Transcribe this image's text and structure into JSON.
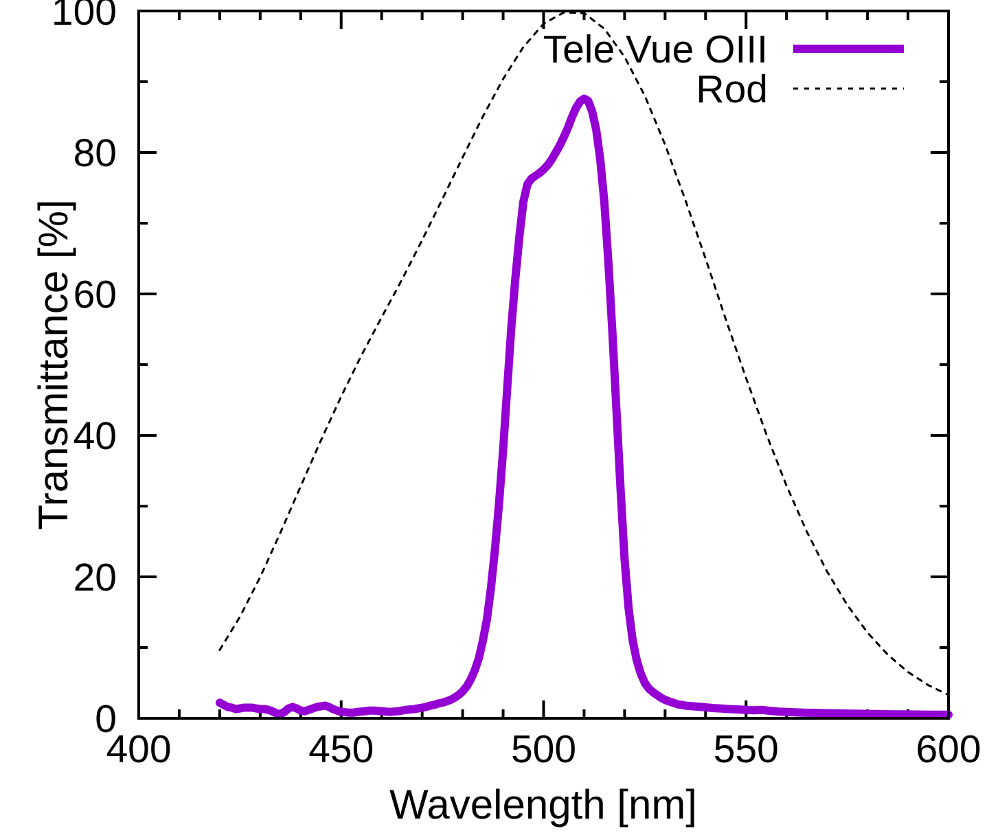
{
  "chart_data": {
    "type": "line",
    "title": "",
    "xlabel": "Wavelength [nm]",
    "ylabel": "Transmittance [%]",
    "xlim": [
      400,
      600
    ],
    "ylim": [
      0,
      100
    ],
    "x_major_ticks": [
      400,
      450,
      500,
      550,
      600
    ],
    "x_minor_step": 10,
    "y_major_ticks": [
      0,
      20,
      40,
      60,
      80,
      100
    ],
    "y_minor_step": 10,
    "grid": false,
    "legend_position": "top-right-inside",
    "axis_color": "#000000",
    "background_color": "#ffffff",
    "series": [
      {
        "name": "Tele Vue OIII",
        "color": "#9400d3",
        "line_width": 12,
        "dash": null,
        "points": [
          [
            420,
            2.2
          ],
          [
            421,
            1.9
          ],
          [
            422,
            1.6
          ],
          [
            423,
            1.5
          ],
          [
            424,
            1.3
          ],
          [
            425,
            1.4
          ],
          [
            426,
            1.5
          ],
          [
            427,
            1.5
          ],
          [
            428,
            1.5
          ],
          [
            429,
            1.4
          ],
          [
            430,
            1.3
          ],
          [
            431,
            1.3
          ],
          [
            432,
            1.2
          ],
          [
            433,
            1.0
          ],
          [
            434,
            0.7
          ],
          [
            435,
            0.6
          ],
          [
            436,
            0.9
          ],
          [
            437,
            1.4
          ],
          [
            438,
            1.6
          ],
          [
            439,
            1.4
          ],
          [
            440,
            1.1
          ],
          [
            441,
            1.0
          ],
          [
            442,
            1.2
          ],
          [
            443,
            1.4
          ],
          [
            444,
            1.6
          ],
          [
            445,
            1.7
          ],
          [
            446,
            1.8
          ],
          [
            447,
            1.6
          ],
          [
            448,
            1.3
          ],
          [
            449,
            1.1
          ],
          [
            450,
            0.9
          ],
          [
            451,
            0.85
          ],
          [
            452,
            0.8
          ],
          [
            453,
            0.8
          ],
          [
            454,
            0.9
          ],
          [
            455,
            0.95
          ],
          [
            456,
            1.0
          ],
          [
            457,
            1.1
          ],
          [
            458,
            1.1
          ],
          [
            459,
            1.05
          ],
          [
            460,
            1.0
          ],
          [
            461,
            0.95
          ],
          [
            462,
            0.9
          ],
          [
            463,
            0.95
          ],
          [
            464,
            1.0
          ],
          [
            465,
            1.1
          ],
          [
            466,
            1.2
          ],
          [
            467,
            1.25
          ],
          [
            468,
            1.3
          ],
          [
            469,
            1.4
          ],
          [
            470,
            1.5
          ],
          [
            471,
            1.6
          ],
          [
            472,
            1.8
          ],
          [
            473,
            1.9
          ],
          [
            474,
            2.1
          ],
          [
            475,
            2.2
          ],
          [
            476,
            2.4
          ],
          [
            477,
            2.6
          ],
          [
            478,
            2.9
          ],
          [
            479,
            3.3
          ],
          [
            480,
            3.8
          ],
          [
            481,
            4.5
          ],
          [
            482,
            5.5
          ],
          [
            483,
            6.8
          ],
          [
            484,
            8.5
          ],
          [
            485,
            11
          ],
          [
            486,
            14
          ],
          [
            487,
            18.5
          ],
          [
            488,
            24
          ],
          [
            489,
            30.5
          ],
          [
            490,
            38
          ],
          [
            491,
            46.5
          ],
          [
            492,
            55
          ],
          [
            493,
            62
          ],
          [
            494,
            68
          ],
          [
            495,
            73
          ],
          [
            496,
            75.5
          ],
          [
            497,
            76.3
          ],
          [
            498,
            76.7
          ],
          [
            499,
            77.1
          ],
          [
            500,
            77.6
          ],
          [
            501,
            78.2
          ],
          [
            502,
            79
          ],
          [
            503,
            80
          ],
          [
            504,
            81
          ],
          [
            505,
            82.2
          ],
          [
            506,
            83.5
          ],
          [
            507,
            85
          ],
          [
            508,
            86.3
          ],
          [
            509,
            87.2
          ],
          [
            510,
            87.6
          ],
          [
            511,
            87.3
          ],
          [
            512,
            85.8
          ],
          [
            513,
            83.2
          ],
          [
            514,
            79
          ],
          [
            515,
            73
          ],
          [
            516,
            64.5
          ],
          [
            517,
            54.5
          ],
          [
            518,
            43.5
          ],
          [
            519,
            32.5
          ],
          [
            520,
            22.5
          ],
          [
            521,
            15.5
          ],
          [
            522,
            11
          ],
          [
            523,
            8.2
          ],
          [
            524,
            6.3
          ],
          [
            525,
            5.0
          ],
          [
            526,
            4.2
          ],
          [
            527,
            3.7
          ],
          [
            528,
            3.3
          ],
          [
            529,
            2.9
          ],
          [
            530,
            2.6
          ],
          [
            531,
            2.4
          ],
          [
            532,
            2.2
          ],
          [
            533,
            2.0
          ],
          [
            534,
            1.9
          ],
          [
            535,
            1.8
          ],
          [
            536,
            1.75
          ],
          [
            537,
            1.7
          ],
          [
            538,
            1.65
          ],
          [
            539,
            1.6
          ],
          [
            540,
            1.55
          ],
          [
            542,
            1.45
          ],
          [
            544,
            1.38
          ],
          [
            546,
            1.3
          ],
          [
            548,
            1.25
          ],
          [
            550,
            1.18
          ],
          [
            552,
            1.15
          ],
          [
            554,
            1.18
          ],
          [
            556,
            1.05
          ],
          [
            558,
            0.95
          ],
          [
            560,
            0.9
          ],
          [
            562,
            0.85
          ],
          [
            564,
            0.8
          ],
          [
            566,
            0.78
          ],
          [
            568,
            0.75
          ],
          [
            570,
            0.72
          ],
          [
            572,
            0.7
          ],
          [
            574,
            0.68
          ],
          [
            576,
            0.66
          ],
          [
            578,
            0.64
          ],
          [
            580,
            0.62
          ],
          [
            582,
            0.6
          ],
          [
            584,
            0.58
          ],
          [
            586,
            0.56
          ],
          [
            588,
            0.55
          ],
          [
            590,
            0.54
          ],
          [
            592,
            0.53
          ],
          [
            594,
            0.52
          ],
          [
            596,
            0.51
          ],
          [
            598,
            0.5
          ],
          [
            600,
            0.5
          ]
        ]
      },
      {
        "name": "Rod",
        "color": "#000000",
        "line_width": 3,
        "dash": "7 9",
        "points": [
          [
            420,
            9.66
          ],
          [
            425,
            14.36
          ],
          [
            430,
            19.98
          ],
          [
            435,
            26.25
          ],
          [
            440,
            32.81
          ],
          [
            445,
            39.31
          ],
          [
            450,
            45.5
          ],
          [
            455,
            51.3
          ],
          [
            460,
            56.7
          ],
          [
            465,
            62.0
          ],
          [
            470,
            67.6
          ],
          [
            475,
            73.4
          ],
          [
            480,
            79.3
          ],
          [
            485,
            85.1
          ],
          [
            490,
            90.4
          ],
          [
            495,
            94.9
          ],
          [
            500,
            98.2
          ],
          [
            505,
            99.8
          ],
          [
            510,
            99.7
          ],
          [
            515,
            97.5
          ],
          [
            520,
            93.5
          ],
          [
            525,
            88.0
          ],
          [
            530,
            81.1
          ],
          [
            535,
            73.3
          ],
          [
            540,
            65.0
          ],
          [
            545,
            56.4
          ],
          [
            550,
            48.1
          ],
          [
            555,
            40.2
          ],
          [
            560,
            32.88
          ],
          [
            565,
            26.39
          ],
          [
            570,
            20.76
          ],
          [
            575,
            16.02
          ],
          [
            580,
            12.12
          ],
          [
            585,
            8.99
          ],
          [
            590,
            6.55
          ],
          [
            595,
            4.69
          ],
          [
            600,
            3.315
          ]
        ]
      }
    ]
  }
}
